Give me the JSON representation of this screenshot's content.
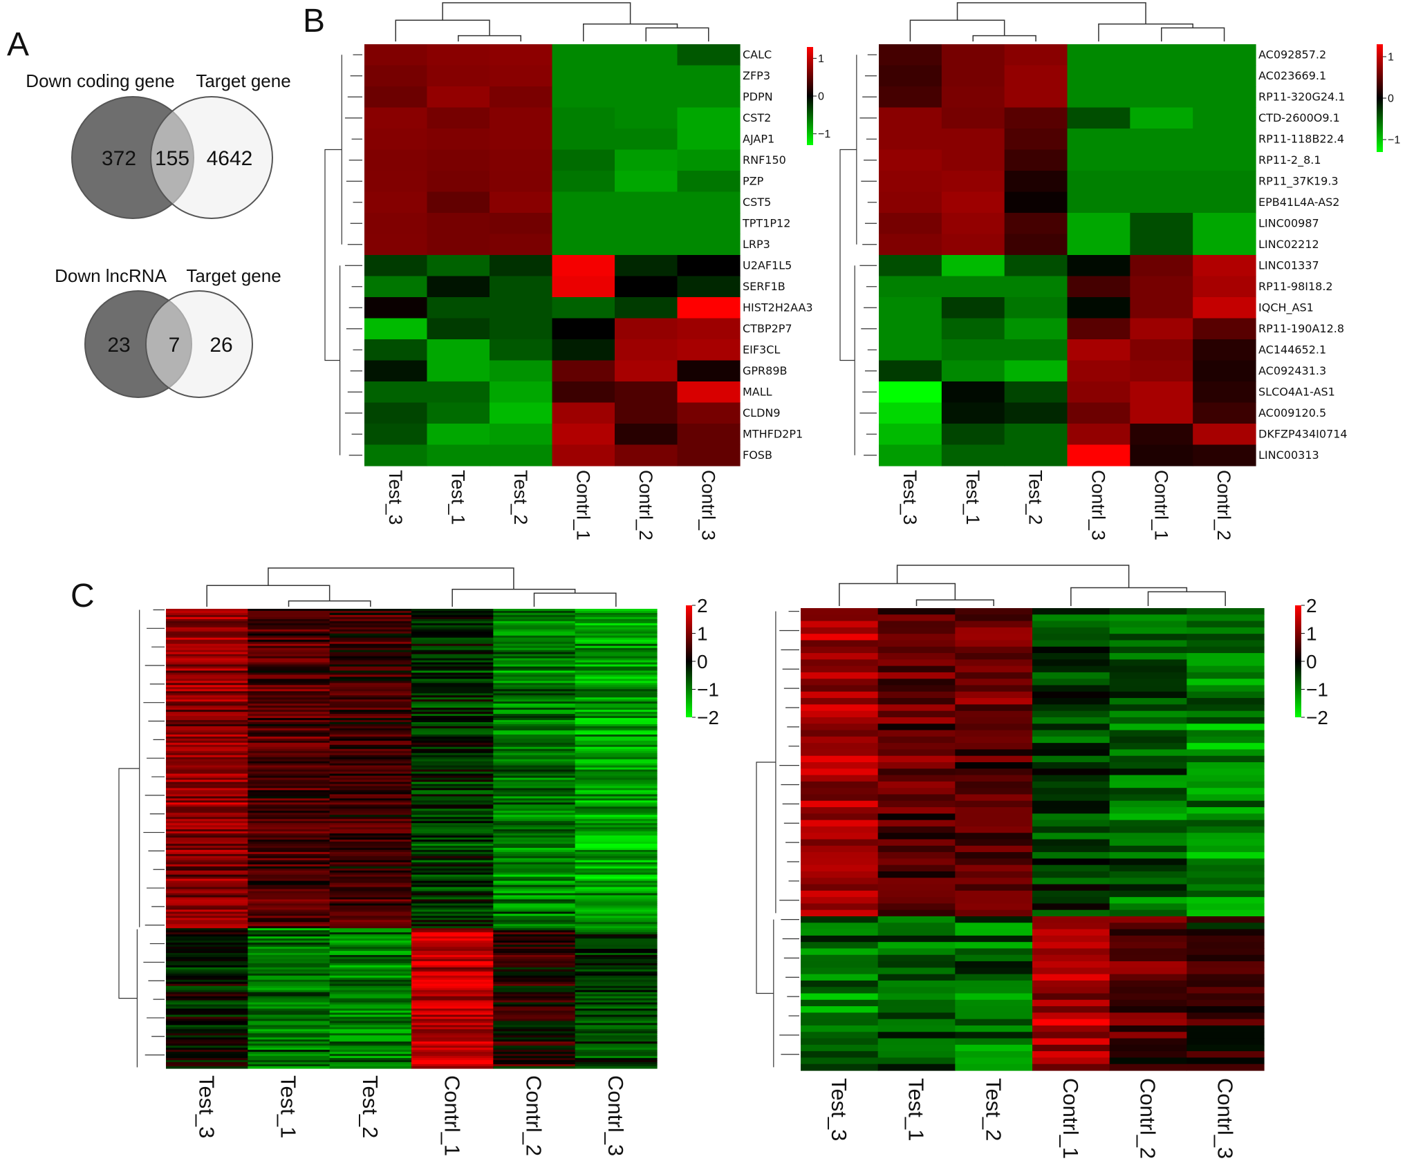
{
  "panels": {
    "A": {
      "letter": "A",
      "venn1": {
        "left_label": "Down coding gene",
        "right_label": "Target gene",
        "left_only": "372",
        "overlap": "155",
        "right_only": "4642"
      },
      "venn2": {
        "left_label": "Down lncRNA",
        "right_label": "Target gene",
        "left_only": "23",
        "overlap": "7",
        "right_only": "26"
      }
    },
    "B": {
      "letter": "B"
    },
    "C": {
      "letter": "C"
    }
  },
  "colors": {
    "high": "#ff0000",
    "mid": "#000000",
    "low": "#00ff00"
  },
  "chart_data": [
    {
      "type": "heatmap",
      "panel": "B",
      "columns": [
        "Test_3",
        "Test_1",
        "Test_2",
        "Contrl_1",
        "Contrl_2",
        "Contrl_3"
      ],
      "rows": [
        "CALC",
        "ZFP3",
        "PDPN",
        "CST2",
        "AJAP1",
        "RNF150",
        "PZP",
        "CST5",
        "TPT1P12",
        "LRP3",
        "U2AF1L5",
        "SERF1B",
        "HIST2H2AA3",
        "CTBP2P7",
        "EIF3CL",
        "GPR89B",
        "MALL",
        "CLDN9",
        "MTHFD2P1",
        "FOSB"
      ],
      "values": [
        [
          0.65,
          0.7,
          0.72,
          -0.7,
          -0.7,
          -0.45
        ],
        [
          0.6,
          0.68,
          0.7,
          -0.7,
          -0.7,
          -0.7
        ],
        [
          0.55,
          0.75,
          0.62,
          -0.7,
          -0.7,
          -0.7
        ],
        [
          0.7,
          0.6,
          0.68,
          -0.65,
          -0.7,
          -0.85
        ],
        [
          0.68,
          0.65,
          0.68,
          -0.65,
          -0.65,
          -0.85
        ],
        [
          0.65,
          0.62,
          0.66,
          -0.55,
          -0.8,
          -0.75
        ],
        [
          0.66,
          0.6,
          0.65,
          -0.6,
          -0.85,
          -0.6
        ],
        [
          0.68,
          0.5,
          0.7,
          -0.7,
          -0.7,
          -0.7
        ],
        [
          0.65,
          0.6,
          0.58,
          -0.7,
          -0.7,
          -0.7
        ],
        [
          0.66,
          0.6,
          0.62,
          -0.7,
          -0.7,
          -0.7
        ],
        [
          -0.3,
          -0.5,
          -0.25,
          1.25,
          -0.2,
          0.0
        ],
        [
          -0.6,
          -0.1,
          -0.4,
          1.2,
          0.0,
          -0.2
        ],
        [
          0.05,
          -0.4,
          -0.4,
          -0.5,
          -0.3,
          1.3
        ],
        [
          -0.95,
          -0.3,
          -0.4,
          0.0,
          0.75,
          0.8
        ],
        [
          -0.4,
          -0.85,
          -0.45,
          -0.15,
          0.8,
          0.85
        ],
        [
          -0.1,
          -0.85,
          -0.75,
          0.5,
          0.85,
          0.1
        ],
        [
          -0.5,
          -0.5,
          -0.85,
          0.3,
          0.4,
          1.1
        ],
        [
          -0.35,
          -0.55,
          -0.95,
          0.8,
          0.4,
          0.6
        ],
        [
          -0.4,
          -0.85,
          -0.8,
          0.9,
          0.2,
          0.5
        ],
        [
          -0.6,
          -0.7,
          -0.7,
          0.8,
          0.6,
          0.5
        ]
      ],
      "scale_ticks": [
        "1",
        "0",
        "−1"
      ],
      "vmin": -1.3,
      "vmax": 1.3
    },
    {
      "type": "heatmap",
      "panel": "B",
      "columns": [
        "Test_3",
        "Test_1",
        "Test_2",
        "Contrl_3",
        "Contrl_1",
        "Contrl_2"
      ],
      "rows": [
        "AC092857.2",
        "AC023669.1",
        "RP11-320G24.1",
        "CTD-2600O9.1",
        "RP11-118B22.4",
        "RP11-2_8.1",
        "RP11_37K19.3",
        "EPB41L4A-AS2",
        "LINC00987",
        "LINC02212",
        "LINC01337",
        "RP11-98I18.2",
        "IQCH_AS1",
        "RP11-190A12.8",
        "AC144652.1",
        "AC092431.3",
        "SLCO4A1-AS1",
        "AC009120.5",
        "DKFZP434I0714",
        "LINC00313"
      ],
      "values": [
        [
          0.35,
          0.6,
          0.7,
          -0.7,
          -0.7,
          -0.7
        ],
        [
          0.3,
          0.6,
          0.75,
          -0.7,
          -0.7,
          -0.7
        ],
        [
          0.35,
          0.62,
          0.75,
          -0.7,
          -0.7,
          -0.7
        ],
        [
          0.7,
          0.6,
          0.45,
          -0.4,
          -0.85,
          -0.7
        ],
        [
          0.7,
          0.7,
          0.4,
          -0.7,
          -0.7,
          -0.7
        ],
        [
          0.75,
          0.7,
          0.3,
          -0.7,
          -0.7,
          -0.7
        ],
        [
          0.72,
          0.75,
          0.15,
          -0.65,
          -0.65,
          -0.65
        ],
        [
          0.7,
          0.8,
          0.05,
          -0.65,
          -0.65,
          -0.65
        ],
        [
          0.6,
          0.75,
          0.35,
          -0.85,
          -0.4,
          -0.85
        ],
        [
          0.65,
          0.72,
          0.3,
          -0.85,
          -0.4,
          -0.85
        ],
        [
          -0.4,
          -0.95,
          -0.4,
          -0.05,
          0.55,
          0.9
        ],
        [
          -0.65,
          -0.65,
          -0.65,
          0.35,
          0.6,
          0.85
        ],
        [
          -0.7,
          -0.3,
          -0.6,
          -0.05,
          0.6,
          1.0
        ],
        [
          -0.7,
          -0.5,
          -0.75,
          0.45,
          0.8,
          0.45
        ],
        [
          -0.7,
          -0.6,
          -0.6,
          0.85,
          0.65,
          0.2
        ],
        [
          -0.3,
          -0.7,
          -0.9,
          0.75,
          0.7,
          0.15
        ],
        [
          -1.3,
          -0.05,
          -0.35,
          0.7,
          0.85,
          0.2
        ],
        [
          -1.1,
          -0.1,
          -0.2,
          0.55,
          0.85,
          0.3
        ],
        [
          -0.95,
          -0.35,
          -0.5,
          0.75,
          0.2,
          0.85
        ],
        [
          -0.8,
          -0.5,
          -0.5,
          1.3,
          0.15,
          0.2
        ]
      ],
      "scale_ticks": [
        "1",
        "0",
        "−1"
      ],
      "vmin": -1.3,
      "vmax": 1.3
    },
    {
      "type": "heatmap",
      "panel": "C",
      "columns": [
        "Test_3",
        "Test_1",
        "Test_2",
        "Contrl_1",
        "Contrl_2",
        "Contrl_3"
      ],
      "rows": [],
      "blocks": [
        {
          "n_rows": 155,
          "mean": [
            1.1,
            0.6,
            0.45,
            -0.35,
            -0.95,
            -1.25
          ]
        },
        {
          "n_rows": 68,
          "mean": [
            -0.15,
            -0.9,
            -1.0,
            1.55,
            0.2,
            -0.5
          ]
        }
      ],
      "scale_ticks": [
        "2",
        "1",
        "0",
        "−1",
        "−2"
      ],
      "vmin": -2,
      "vmax": 2
    },
    {
      "type": "heatmap",
      "panel": "C",
      "columns": [
        "Test_3",
        "Test_1",
        "Test_2",
        "Contrl_1",
        "Contrl_2",
        "Contrl_3"
      ],
      "rows": [],
      "blocks": [
        {
          "n_rows": 48,
          "mean": [
            1.2,
            0.7,
            0.65,
            -0.55,
            -0.8,
            -1.1
          ]
        },
        {
          "n_rows": 24,
          "mean": [
            -0.85,
            -0.7,
            -0.85,
            1.3,
            0.6,
            0.3
          ]
        }
      ],
      "scale_ticks": [
        "2",
        "1",
        "0",
        "−1",
        "−2"
      ],
      "vmin": -2,
      "vmax": 2
    }
  ]
}
